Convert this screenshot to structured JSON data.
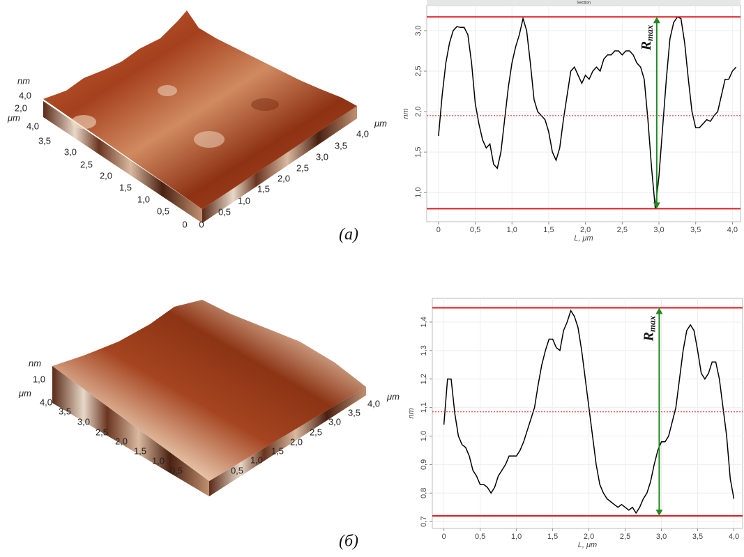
{
  "chart_data": [
    {
      "type": "line",
      "title": "Section",
      "xlabel": "L, μm",
      "ylabel": "nm",
      "x": [
        0,
        0.05,
        0.1,
        0.15,
        0.2,
        0.25,
        0.3,
        0.35,
        0.4,
        0.45,
        0.5,
        0.55,
        0.6,
        0.65,
        0.7,
        0.75,
        0.8,
        0.85,
        0.9,
        0.95,
        1,
        1.05,
        1.1,
        1.15,
        1.2,
        1.25,
        1.3,
        1.35,
        1.4,
        1.45,
        1.5,
        1.55,
        1.6,
        1.65,
        1.7,
        1.75,
        1.8,
        1.85,
        1.9,
        1.95,
        2,
        2.05,
        2.1,
        2.15,
        2.2,
        2.25,
        2.3,
        2.35,
        2.4,
        2.45,
        2.5,
        2.55,
        2.6,
        2.65,
        2.7,
        2.75,
        2.8,
        2.85,
        2.9,
        2.95,
        3,
        3.05,
        3.1,
        3.15,
        3.2,
        3.25,
        3.3,
        3.35,
        3.4,
        3.45,
        3.5,
        3.55,
        3.6,
        3.65,
        3.7,
        3.75,
        3.8,
        3.85,
        3.9,
        3.95,
        4,
        4.05
      ],
      "series": [
        {
          "color": "#000000",
          "values": [
            1.7,
            2.2,
            2.6,
            2.85,
            3.0,
            3.05,
            3.04,
            3.04,
            2.95,
            2.6,
            2.1,
            1.85,
            1.65,
            1.55,
            1.6,
            1.35,
            1.3,
            1.5,
            1.9,
            2.3,
            2.6,
            2.8,
            2.95,
            3.15,
            3.0,
            2.6,
            2.15,
            2.0,
            1.95,
            1.9,
            1.75,
            1.5,
            1.4,
            1.55,
            1.9,
            2.2,
            2.5,
            2.55,
            2.45,
            2.35,
            2.45,
            2.4,
            2.5,
            2.55,
            2.5,
            2.65,
            2.7,
            2.7,
            2.75,
            2.75,
            2.7,
            2.75,
            2.75,
            2.7,
            2.6,
            2.55,
            2.4,
            1.9,
            1.3,
            0.8,
            1.2,
            1.8,
            2.4,
            2.9,
            3.1,
            3.17,
            3.15,
            2.85,
            2.4,
            2.0,
            1.8,
            1.8,
            1.85,
            1.9,
            1.88,
            1.95,
            2.0,
            2.2,
            2.4,
            2.4,
            2.5,
            2.55
          ]
        }
      ],
      "xlim": [
        -0.16,
        4.11
      ],
      "ylim": [
        0.64,
        3.31
      ],
      "xticks": [
        0,
        {
          "value": 0.5,
          "label": "0,5"
        },
        {
          "value": 1,
          "label": "1,0"
        },
        {
          "value": 1.5,
          "label": "1,5"
        },
        {
          "value": 2,
          "label": "2,0"
        },
        {
          "value": 2.5,
          "label": "2,5"
        },
        {
          "value": 3,
          "label": "3,0"
        },
        {
          "value": 3.5,
          "label": "3,5"
        },
        {
          "value": 4,
          "label": "4,0"
        }
      ],
      "yticks": [
        {
          "value": 1,
          "label": "1,0"
        },
        {
          "value": 1.5,
          "label": "1,5"
        },
        {
          "value": 2,
          "label": "2,0"
        },
        {
          "value": 2.5,
          "label": "2,5"
        },
        {
          "value": 3,
          "label": "3,0"
        }
      ],
      "grid": true,
      "hlines": [
        {
          "value": 3.17,
          "color": "#e31a1c",
          "style": "solid"
        },
        {
          "value": 0.8,
          "color": "#e31a1c",
          "style": "solid"
        },
        {
          "value": 1.95,
          "color": "#e31a1c",
          "style": "dotted"
        }
      ],
      "arrow": {
        "x": 2.97,
        "from": 0.8,
        "to": 3.17,
        "color": "#1f8a1f"
      },
      "annotation": {
        "text": "R",
        "subscript": "max"
      }
    },
    {
      "type": "line",
      "xlabel": "L, μm",
      "ylabel": "nm",
      "x": [
        0,
        0.05,
        0.1,
        0.15,
        0.2,
        0.25,
        0.3,
        0.35,
        0.4,
        0.45,
        0.5,
        0.55,
        0.6,
        0.65,
        0.7,
        0.75,
        0.8,
        0.85,
        0.9,
        0.95,
        1,
        1.05,
        1.1,
        1.15,
        1.2,
        1.25,
        1.3,
        1.35,
        1.4,
        1.45,
        1.5,
        1.55,
        1.6,
        1.65,
        1.7,
        1.75,
        1.8,
        1.85,
        1.9,
        1.95,
        2,
        2.05,
        2.1,
        2.15,
        2.2,
        2.25,
        2.3,
        2.35,
        2.4,
        2.45,
        2.5,
        2.55,
        2.6,
        2.65,
        2.7,
        2.75,
        2.8,
        2.85,
        2.9,
        2.95,
        3,
        3.05,
        3.1,
        3.15,
        3.2,
        3.25,
        3.3,
        3.35,
        3.4,
        3.45,
        3.5,
        3.55,
        3.6,
        3.65,
        3.7,
        3.75,
        3.8,
        3.85,
        3.9,
        3.95,
        4
      ],
      "series": [
        {
          "color": "#000000",
          "values": [
            1.04,
            1.2,
            1.2,
            1.08,
            1.0,
            0.97,
            0.96,
            0.93,
            0.88,
            0.86,
            0.83,
            0.83,
            0.82,
            0.8,
            0.82,
            0.86,
            0.88,
            0.9,
            0.93,
            0.93,
            0.93,
            0.95,
            0.98,
            1.02,
            1.06,
            1.1,
            1.18,
            1.25,
            1.3,
            1.34,
            1.34,
            1.31,
            1.3,
            1.37,
            1.4,
            1.44,
            1.42,
            1.38,
            1.3,
            1.2,
            1.1,
            1.0,
            0.9,
            0.83,
            0.8,
            0.78,
            0.77,
            0.76,
            0.75,
            0.76,
            0.75,
            0.74,
            0.75,
            0.73,
            0.75,
            0.78,
            0.8,
            0.84,
            0.9,
            0.95,
            0.98,
            0.98,
            1.0,
            1.05,
            1.1,
            1.2,
            1.3,
            1.37,
            1.39,
            1.37,
            1.3,
            1.22,
            1.2,
            1.22,
            1.26,
            1.26,
            1.2,
            1.1,
            1.0,
            0.85,
            0.78
          ]
        }
      ],
      "xlim": [
        -0.16,
        4.12
      ],
      "ylim": [
        0.676,
        1.483
      ],
      "xticks": [
        0,
        {
          "value": 0.5,
          "label": "0,5"
        },
        {
          "value": 1,
          "label": "1,0"
        },
        {
          "value": 1.5,
          "label": "1,5"
        },
        {
          "value": 2,
          "label": "2,0"
        },
        {
          "value": 2.5,
          "label": "2,5"
        },
        {
          "value": 3,
          "label": "3,0"
        },
        {
          "value": 3.5,
          "label": "3,5"
        },
        {
          "value": 4,
          "label": "4,0"
        }
      ],
      "yticks": [
        {
          "value": 0.7,
          "label": "0,7"
        },
        {
          "value": 0.8,
          "label": "0,8"
        },
        {
          "value": 0.9,
          "label": "0,9"
        },
        {
          "value": 1,
          "label": "1,0"
        },
        {
          "value": 1.1,
          "label": "1,1"
        },
        {
          "value": 1.2,
          "label": "1,2"
        },
        {
          "value": 1.3,
          "label": "1,3"
        },
        {
          "value": 1.4,
          "label": "1,4"
        }
      ],
      "grid": true,
      "hlines": [
        {
          "value": 1.45,
          "color": "#e31a1c",
          "style": "solid"
        },
        {
          "value": 0.72,
          "color": "#e31a1c",
          "style": "solid"
        },
        {
          "value": 1.085,
          "color": "#e31a1c",
          "style": "dotted"
        }
      ],
      "arrow": {
        "x": 2.97,
        "from": 0.72,
        "to": 1.45,
        "color": "#1f8a1f"
      },
      "annotation": {
        "text": "R",
        "subscript": "max"
      }
    }
  ],
  "surfaces": [
    {
      "z_unit": "nm",
      "z_ticks": [
        "4,0",
        "2,0"
      ],
      "xy_unit": "μm",
      "left_ticks": [
        "4,0",
        "3,5",
        "3,0",
        "2,5",
        "2,0",
        "1,5",
        "1,0",
        "0,5",
        "0"
      ],
      "right_ticks": [
        "0",
        "0,5",
        "1,0",
        "1,5",
        "2,0",
        "2,5",
        "3,0",
        "3,5",
        "4,0"
      ],
      "caption": "(а)"
    },
    {
      "z_unit": "nm",
      "z_ticks": [
        "1,0"
      ],
      "xy_unit": "μm",
      "left_ticks": [
        "4,0",
        "3,5",
        "3,0",
        "2,5",
        "2,0",
        "1,5",
        "1,0",
        "0,5"
      ],
      "right_ticks": [
        "0,5",
        "1,0",
        "1,5",
        "2,0",
        "2,5",
        "3,0",
        "3,5",
        "4,0"
      ],
      "caption": "(б)"
    }
  ]
}
